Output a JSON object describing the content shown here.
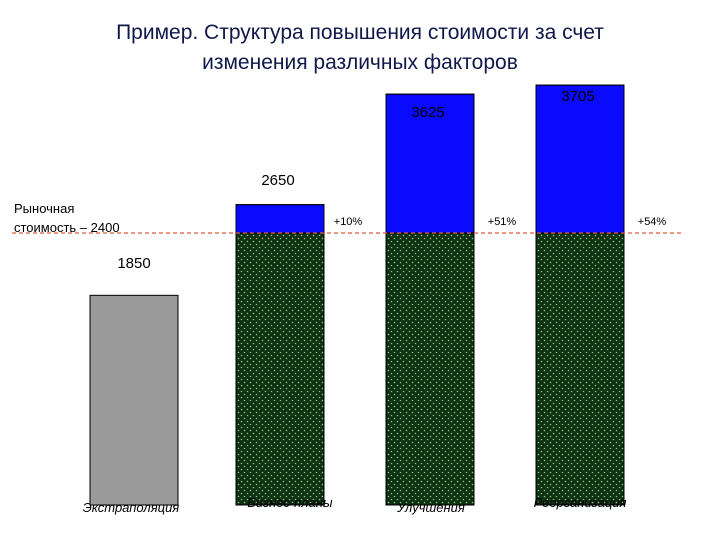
{
  "title_line1": "Пример. Структура повышения стоимости за счет",
  "title_line2": "изменения различных факторов",
  "chart_data": {
    "type": "bar",
    "categories": [
      "Экстраполяция",
      "Бизнес-планы",
      "Улучшения",
      "Реорганизация"
    ],
    "values": [
      1850,
      2650,
      3625,
      3705
    ],
    "value_labels": [
      "1850",
      "2650",
      "3625",
      "3705"
    ],
    "reference": {
      "value": 2400,
      "label_line1": "Рыночная",
      "label_line2": "стоимость – 2400"
    },
    "percent_labels": [
      "+10%",
      "+51%",
      "+54%"
    ],
    "grid": false,
    "legend": "none"
  },
  "colors": {
    "gray_bar": "#9a9a9a",
    "blue": "#0a0aff",
    "green_base": "#0c3210",
    "green_dot": "#8fbf8f",
    "reference_line": "#e05a3a",
    "title": "#10184a"
  }
}
